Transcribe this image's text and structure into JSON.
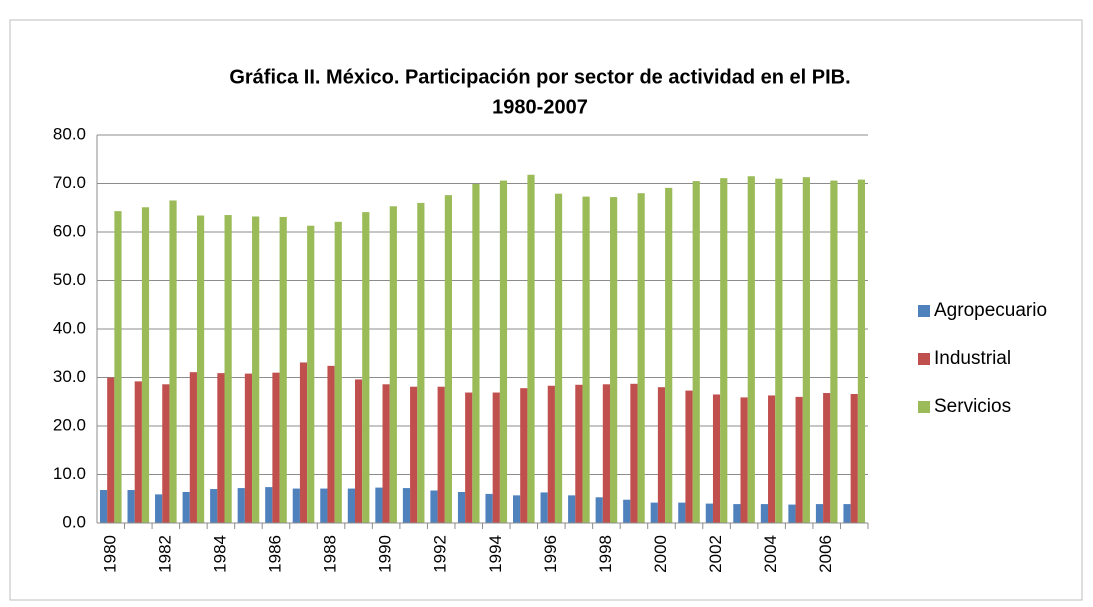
{
  "chart_data": {
    "type": "bar",
    "title": [
      "Gráfica II. México. Participación por sector de actividad en el PIB.",
      "1980-2007"
    ],
    "categories": [
      "1980",
      null,
      "1982",
      null,
      "1984",
      null,
      "1986",
      null,
      "1988",
      null,
      "1990",
      null,
      "1992",
      null,
      "1994",
      null,
      "1996",
      null,
      "1998",
      null,
      "2000",
      null,
      "2002",
      null,
      "2004",
      null,
      "2006",
      null
    ],
    "series": [
      {
        "name": "Agropecuario",
        "color": "#4f81bd",
        "values": [
          6.8,
          6.8,
          5.9,
          6.4,
          7.0,
          7.2,
          7.4,
          7.1,
          7.1,
          7.1,
          7.3,
          7.2,
          6.7,
          6.4,
          6.0,
          5.7,
          6.3,
          5.7,
          5.3,
          4.8,
          4.2,
          4.2,
          4.0,
          3.9,
          3.9,
          3.8,
          3.9,
          3.9
        ]
      },
      {
        "name": "Industrial",
        "color": "#c0504d",
        "values": [
          30.0,
          29.2,
          28.6,
          31.1,
          30.9,
          30.8,
          31.0,
          33.1,
          32.4,
          29.6,
          28.6,
          28.1,
          28.1,
          26.9,
          26.9,
          27.8,
          28.3,
          28.5,
          28.6,
          28.7,
          28.0,
          27.3,
          26.5,
          25.9,
          26.3,
          26.0,
          26.8,
          26.6
        ]
      },
      {
        "name": "Servicios",
        "color": "#9bbb59",
        "values": [
          64.3,
          65.1,
          66.5,
          63.4,
          63.5,
          63.2,
          63.1,
          61.3,
          62.1,
          64.1,
          65.3,
          66.0,
          67.6,
          69.9,
          70.6,
          71.8,
          67.9,
          67.3,
          67.2,
          68.0,
          69.1,
          70.5,
          71.1,
          71.5,
          71.0,
          71.3,
          70.6,
          70.8
        ]
      }
    ],
    "ylim": [
      0,
      80
    ],
    "yticks": [
      {
        "value": 0,
        "label": "0.0"
      },
      {
        "value": 10,
        "label": "10.0"
      },
      {
        "value": 20,
        "label": "20.0"
      },
      {
        "value": 30,
        "label": "30.0"
      },
      {
        "value": 40,
        "label": "40.0"
      },
      {
        "value": 50,
        "label": "50.0"
      },
      {
        "value": 60,
        "label": "60.0"
      },
      {
        "value": 70,
        "label": "70.0"
      },
      {
        "value": 80,
        "label": "80.0"
      }
    ],
    "grid": true,
    "legend": "right"
  }
}
